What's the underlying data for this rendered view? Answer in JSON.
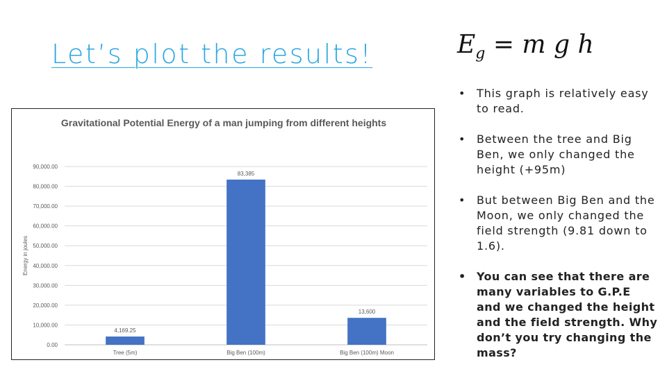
{
  "slide": {
    "title": "Let’s plot the results!",
    "formula_main": "E",
    "formula_sub": "g",
    "formula_rest": " = m g h",
    "bullets": [
      {
        "text": "This graph is relatively easy to read.",
        "bold": false
      },
      {
        "text": "Between the tree and Big Ben, we only changed the height (+95m)",
        "bold": false
      },
      {
        "text": "But between Big Ben and the Moon, we only changed the field strength (9.81 down to 1.6).",
        "bold": false
      },
      {
        "text": "You can see that there are many variables to G.P.E and we changed the height and the field strength. Why don’t you try changing the mass?",
        "bold": true
      }
    ],
    "bullet_glyph": "•"
  },
  "chart_data": {
    "type": "bar",
    "title": "Gravitational Potential Energy of a man jumping from different heights",
    "xlabel": "",
    "ylabel": "Energy in joules",
    "categories": [
      "Tree (5m)",
      "Big Ben (100m)",
      "Big Ben (100m) Moon"
    ],
    "values": [
      4169.25,
      83385,
      13600
    ],
    "data_labels": [
      "4,169.25",
      "83,385",
      "13,600"
    ],
    "ylim": [
      0,
      90000
    ],
    "yticks": [
      0,
      10000,
      20000,
      30000,
      40000,
      50000,
      60000,
      70000,
      80000,
      90000
    ],
    "ytick_labels": [
      "0.00",
      "10,000.00",
      "20,000.00",
      "30,000.00",
      "40,000.00",
      "50,000.00",
      "60,000.00",
      "70,000.00",
      "80,000.00",
      "90,000.00"
    ],
    "grid": true,
    "bar_color": "#4472c4",
    "grid_color": "#d9d9d9",
    "text_color": "#595959"
  }
}
